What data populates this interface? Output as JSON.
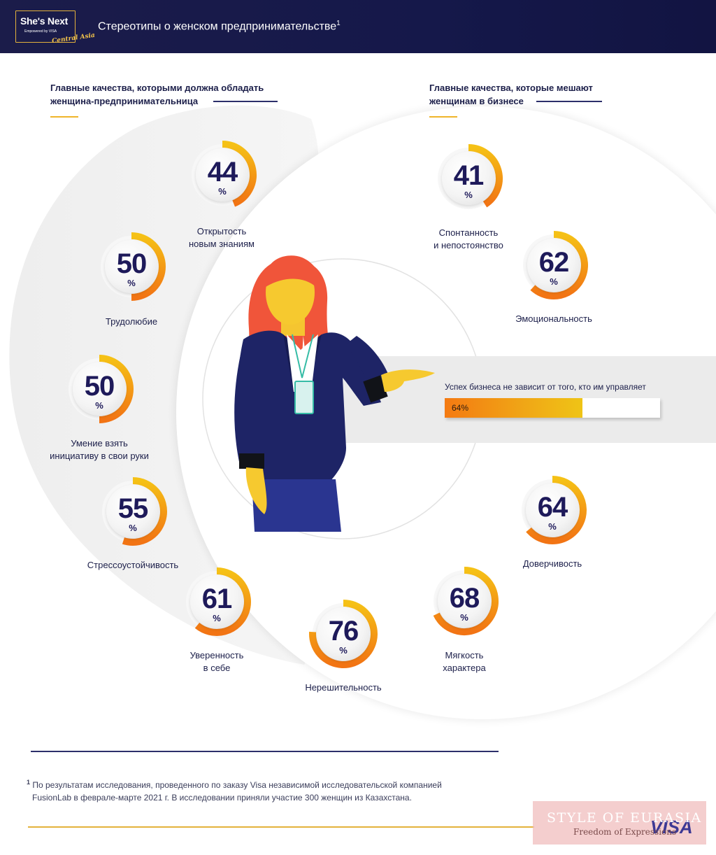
{
  "header": {
    "logo_main": "She's Next",
    "logo_sub": "Empowered by VISA",
    "logo_script": "Central Asia",
    "title": "Стереотипы о женском предпринимательстве",
    "title_sup": "1"
  },
  "left_section": {
    "title_line1": "Главные качества, которыми должна обладать",
    "title_line2": "женщина-предпринимательница",
    "items": [
      {
        "value": "44",
        "unit": "%",
        "label_line1": "Открытость",
        "label_line2": "новым знаниям"
      },
      {
        "value": "50",
        "unit": "%",
        "label_line1": "Трудолюбие",
        "label_line2": ""
      },
      {
        "value": "50",
        "unit": "%",
        "label_line1": "Умение взять",
        "label_line2": "инициативу в свои руки"
      },
      {
        "value": "55",
        "unit": "%",
        "label_line1": "Стрессоустойчивость",
        "label_line2": ""
      },
      {
        "value": "61",
        "unit": "%",
        "label_line1": "Уверенность",
        "label_line2": "в себе"
      }
    ]
  },
  "right_section": {
    "title_line1": "Главные качества, которые мешают",
    "title_line2": "женщинам в бизнесе",
    "items": [
      {
        "value": "41",
        "unit": "%",
        "label_line1": "Спонтанность",
        "label_line2": "и непостоянство"
      },
      {
        "value": "62",
        "unit": "%",
        "label_line1": "Эмоциональность",
        "label_line2": ""
      },
      {
        "value": "64",
        "unit": "%",
        "label_line1": "Доверчивость",
        "label_line2": ""
      },
      {
        "value": "68",
        "unit": "%",
        "label_line1": "Мягкость",
        "label_line2": "характера"
      },
      {
        "value": "76",
        "unit": "%",
        "label_line1": "Нерешительность",
        "label_line2": ""
      }
    ]
  },
  "business_bar": {
    "caption": "Успех бизнеса не зависит от того, кто им управляет",
    "value_text": "64%",
    "fraction": 0.64
  },
  "footnote": {
    "marker": "1",
    "line1": "По результатам исследования, проведенного по заказу Visa независимой исследовательской компанией",
    "line2": "FusionLab в феврале-марте 2021 г. В исследовании приняли участие 300 женщин из Казахстана."
  },
  "watermark": {
    "title": "STYLE OF EURASIA",
    "subtitle": "Freedom of Expressions",
    "brand": "VISA"
  },
  "colors": {
    "navy": "#1c1f4a",
    "orange": "#f47a12",
    "yellow": "#efc416",
    "gold": "#e3b23c"
  }
}
